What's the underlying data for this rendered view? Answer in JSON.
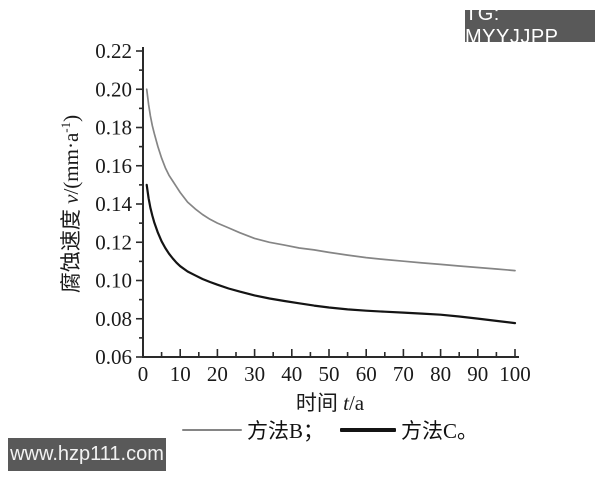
{
  "badge": {
    "text": "TG: MYYJJPP",
    "bg": "#595959",
    "color": "#ffffff"
  },
  "watermark": {
    "text": "www.hzp111.com",
    "bg": "#595959",
    "color": "#f2f2f2"
  },
  "axis": {
    "color": "#2a2a2a",
    "text_color": "#1a1a1a"
  },
  "chart_data": {
    "type": "line",
    "title": "",
    "xlabel_prefix": "时间 ",
    "xlabel_var": "t",
    "xlabel_suffix": "/a",
    "ylabel_prefix": "腐蚀速度 ",
    "ylabel_var": "v",
    "ylabel_mid": "/(mm·a",
    "ylabel_sup": "-1",
    "ylabel_end": ")",
    "xlim": [
      0,
      100
    ],
    "ylim": [
      0.06,
      0.22
    ],
    "x_major_step": 10,
    "x_minor_step": 5,
    "y_major_step": 0.02,
    "y_minor_step": 0.01,
    "x_tick_labels": [
      "0",
      "10",
      "20",
      "30",
      "40",
      "50",
      "60",
      "70",
      "80",
      "90",
      "100"
    ],
    "y_tick_labels": [
      "0.06",
      "0.08",
      "0.10",
      "0.12",
      "0.14",
      "0.16",
      "0.18",
      "0.20",
      "0.22"
    ],
    "grid": false,
    "legend_position": "bottom",
    "series": [
      {
        "id": "method-b",
        "name": "方法B",
        "color": "#858585",
        "width": 1.7,
        "points": [
          [
            1,
            0.2
          ],
          [
            1.5,
            0.192
          ],
          [
            2,
            0.186
          ],
          [
            2.5,
            0.181
          ],
          [
            3,
            0.177
          ],
          [
            4,
            0.17
          ],
          [
            5,
            0.164
          ],
          [
            6,
            0.159
          ],
          [
            7,
            0.155
          ],
          [
            8,
            0.152
          ],
          [
            9,
            0.149
          ],
          [
            10,
            0.146
          ],
          [
            12,
            0.141
          ],
          [
            14,
            0.1375
          ],
          [
            16,
            0.1345
          ],
          [
            18,
            0.132
          ],
          [
            20,
            0.13
          ],
          [
            23,
            0.1275
          ],
          [
            26,
            0.125
          ],
          [
            30,
            0.122
          ],
          [
            34,
            0.12
          ],
          [
            38,
            0.1185
          ],
          [
            42,
            0.117
          ],
          [
            46,
            0.116
          ],
          [
            50,
            0.1147
          ],
          [
            55,
            0.1133
          ],
          [
            60,
            0.112
          ],
          [
            65,
            0.111
          ],
          [
            70,
            0.1101
          ],
          [
            75,
            0.1092
          ],
          [
            80,
            0.1084
          ],
          [
            85,
            0.1076
          ],
          [
            90,
            0.1068
          ],
          [
            95,
            0.106
          ],
          [
            100,
            0.1052
          ]
        ]
      },
      {
        "id": "method-c",
        "name": "方法C",
        "color": "#141414",
        "width": 2.2,
        "points": [
          [
            1,
            0.15
          ],
          [
            1.5,
            0.143
          ],
          [
            2,
            0.138
          ],
          [
            2.5,
            0.134
          ],
          [
            3,
            0.1305
          ],
          [
            4,
            0.125
          ],
          [
            5,
            0.1205
          ],
          [
            6,
            0.117
          ],
          [
            7,
            0.114
          ],
          [
            8,
            0.1115
          ],
          [
            9,
            0.1093
          ],
          [
            10,
            0.1075
          ],
          [
            12,
            0.1047
          ],
          [
            14,
            0.1027
          ],
          [
            16,
            0.1008
          ],
          [
            18,
            0.0992
          ],
          [
            20,
            0.0978
          ],
          [
            23,
            0.0958
          ],
          [
            26,
            0.0942
          ],
          [
            30,
            0.0922
          ],
          [
            34,
            0.0906
          ],
          [
            38,
            0.0893
          ],
          [
            42,
            0.0881
          ],
          [
            46,
            0.0869
          ],
          [
            50,
            0.0859
          ],
          [
            55,
            0.0849
          ],
          [
            60,
            0.0842
          ],
          [
            65,
            0.0837
          ],
          [
            70,
            0.0832
          ],
          [
            75,
            0.0827
          ],
          [
            80,
            0.0821
          ],
          [
            85,
            0.0812
          ],
          [
            90,
            0.0801
          ],
          [
            95,
            0.0789
          ],
          [
            100,
            0.0777
          ]
        ]
      }
    ],
    "legend": [
      {
        "label": "方法B；",
        "color": "#858585",
        "thickness": 2.5,
        "length": 60
      },
      {
        "label": "方法C。",
        "color": "#141414",
        "thickness": 4,
        "length": 56
      }
    ]
  }
}
